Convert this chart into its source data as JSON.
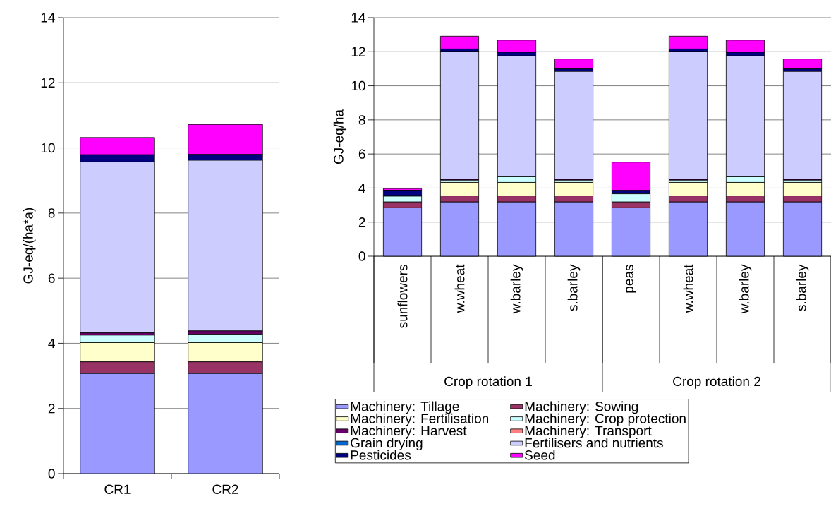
{
  "chart_data": [
    {
      "type": "bar",
      "stacked": true,
      "ylabel": "GJ-eq/(ha*a)",
      "categories": [
        "CR1",
        "CR2"
      ],
      "ylim": [
        0,
        14
      ],
      "yticks": [
        0,
        2,
        4,
        6,
        8,
        10,
        12,
        14
      ],
      "grid": "y",
      "series": [
        {
          "color": "#9999ff",
          "values": [
            3.07,
            3.07
          ]
        },
        {
          "color": "#993366",
          "values": [
            0.36,
            0.36
          ]
        },
        {
          "color": "#ffffcc",
          "values": [
            0.59,
            0.59
          ]
        },
        {
          "color": "#ccffff",
          "values": [
            0.23,
            0.26
          ]
        },
        {
          "color": "#660066",
          "values": [
            0.07,
            0.1
          ]
        },
        {
          "color": "#ff8080",
          "values": [
            0,
            0
          ]
        },
        {
          "color": "#0066cc",
          "values": [
            0,
            0
          ]
        },
        {
          "color": "#ccccff",
          "values": [
            5.25,
            5.24
          ]
        },
        {
          "color": "#000080",
          "values": [
            0.22,
            0.18
          ]
        },
        {
          "color": "#ff00ff",
          "values": [
            0.53,
            0.92
          ]
        }
      ]
    },
    {
      "type": "bar",
      "stacked": true,
      "ylabel": "GJ-eq/ha",
      "categories": [
        "sunflowers",
        "w.wheat",
        "w.barley",
        "s.barley",
        "peas",
        "w.wheat",
        "w.barley",
        "s.barley"
      ],
      "annotations": [
        "Crop rotation 1",
        "Crop rotation 2"
      ],
      "ylim": [
        0,
        14
      ],
      "yticks": [
        0,
        2,
        4,
        6,
        8,
        10,
        12,
        14
      ],
      "grid": "y",
      "legend": "bottom",
      "series": [
        {
          "name": "Machinery: Tillage",
          "color": "#9999ff",
          "values": [
            2.84,
            3.18,
            3.18,
            3.18,
            2.84,
            3.18,
            3.18,
            3.18
          ]
        },
        {
          "name": "Machinery: Sowing",
          "color": "#993366",
          "values": [
            0.34,
            0.36,
            0.36,
            0.36,
            0.34,
            0.36,
            0.36,
            0.36
          ]
        },
        {
          "name": "Machinery: Fertilisation",
          "color": "#ffffcc",
          "values": [
            0,
            0.79,
            0.79,
            0.79,
            0,
            0.79,
            0.79,
            0.79
          ]
        },
        {
          "name": "Machinery: Crop protection",
          "color": "#ccffff",
          "values": [
            0.34,
            0.13,
            0.33,
            0.13,
            0.48,
            0.13,
            0.33,
            0.13
          ]
        },
        {
          "name": "Machinery: Harvest",
          "color": "#660066",
          "values": [
            0.04,
            0.05,
            null,
            0.05,
            null,
            0.05,
            null,
            0.05
          ]
        },
        {
          "name": "Machinery: Transport",
          "color": "#ff8080",
          "values": [
            0,
            0,
            0,
            0,
            0,
            0,
            0,
            0
          ]
        },
        {
          "name": "Grain drying",
          "color": "#0066cc",
          "values": [
            0,
            0,
            0,
            0,
            0,
            0,
            0,
            0
          ]
        },
        {
          "name": "Fertilisers and nutrients",
          "color": "#ccccff",
          "values": [
            0,
            7.5,
            7.09,
            6.33,
            0,
            7.5,
            7.09,
            6.33
          ]
        },
        {
          "name": "Pesticides",
          "color": "#000080",
          "values": [
            0.31,
            0.15,
            0.22,
            0.15,
            0.2,
            0.15,
            0.22,
            0.15
          ]
        },
        {
          "name": "Seed",
          "color": "#ff00ff",
          "values": [
            0.1,
            0.75,
            0.71,
            0.58,
            1.66,
            0.75,
            0.71,
            0.58
          ]
        }
      ]
    }
  ]
}
